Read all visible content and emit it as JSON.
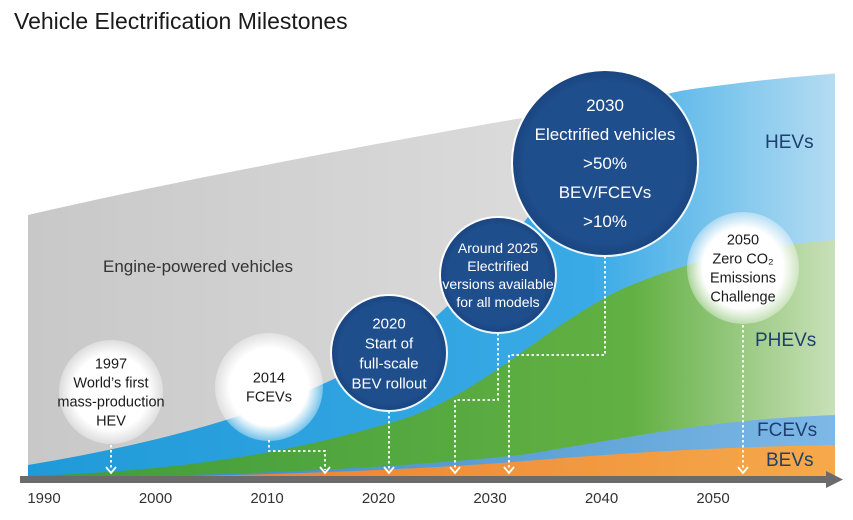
{
  "title": "Vehicle Electrification Milestones",
  "colors": {
    "engine": "#cfcfcf",
    "hev": "#29a0e0",
    "phev": "#5aac3a",
    "fcev": "#4a8fd8",
    "bev": "#f0902a",
    "milestone_dark": "#1f4e8c",
    "axis": "#666666"
  },
  "chart_data": {
    "type": "area",
    "title": "Vehicle Electrification Milestones",
    "xlabel": "",
    "ylabel": "",
    "x_ticks": [
      1990,
      2000,
      2010,
      2020,
      2030,
      2040,
      2050
    ],
    "xlim": [
      1990,
      2058
    ],
    "grid": false,
    "series": [
      {
        "name": "Engine-powered vehicles",
        "type": "region",
        "color": "#cfcfcf"
      },
      {
        "name": "HEVs",
        "type": "region",
        "color": "#29a0e0"
      },
      {
        "name": "PHEVs",
        "type": "region",
        "color": "#5aac3a"
      },
      {
        "name": "FCEVs",
        "type": "region",
        "color": "#4a8fd8"
      },
      {
        "name": "BEVs",
        "type": "region",
        "color": "#f0902a"
      }
    ],
    "region_labels": {
      "engine": "Engine-powered vehicles",
      "hev": "HEVs",
      "phev": "PHEVs",
      "fcev": "FCEVs",
      "bev": "BEVs"
    },
    "milestones": [
      {
        "year": 1997,
        "lines": [
          "1997",
          "World’s first",
          "mass-production",
          "HEV"
        ],
        "style": "light"
      },
      {
        "year": 2014,
        "lines": [
          "2014",
          "FCEVs"
        ],
        "style": "light"
      },
      {
        "year": 2020,
        "lines": [
          "2020",
          "Start of",
          "full-scale",
          "BEV rollout"
        ],
        "style": "dark"
      },
      {
        "year": 2025,
        "lines": [
          "Around 2025",
          "Electrified",
          "versions available",
          "for all models"
        ],
        "style": "dark"
      },
      {
        "year": 2030,
        "lines": [
          "2030",
          "Electrified vehicles",
          ">50%",
          "BEV/FCEVs",
          ">10%"
        ],
        "style": "dark"
      },
      {
        "year": 2050,
        "lines": [
          "2050",
          "Zero CO₂",
          "Emissions",
          "Challenge"
        ],
        "style": "light"
      }
    ]
  }
}
